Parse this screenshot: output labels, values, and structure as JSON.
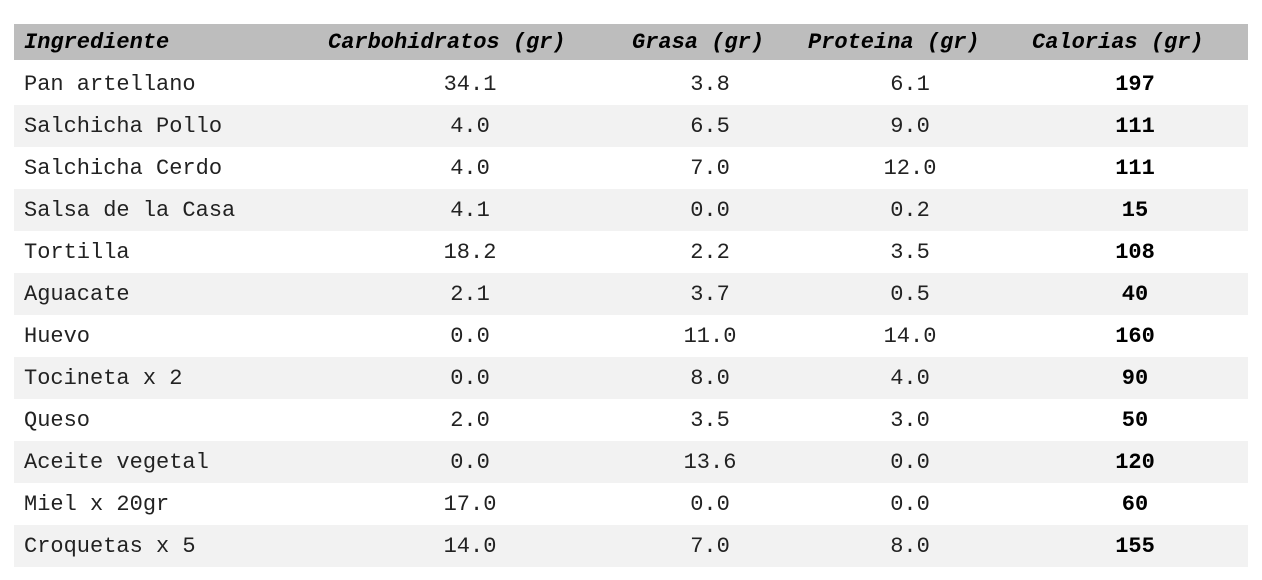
{
  "table": {
    "header": [
      "Ingrediente",
      "Carbohidratos (gr)",
      "Grasa (gr)",
      "Proteina (gr)",
      "Calorias (gr)"
    ],
    "rows": [
      [
        "Pan artellano",
        "34.1",
        "3.8",
        "6.1",
        "197"
      ],
      [
        "Salchicha Pollo",
        "4.0",
        "6.5",
        "9.0",
        "111"
      ],
      [
        "Salchicha Cerdo",
        "4.0",
        "7.0",
        "12.0",
        "111"
      ],
      [
        "Salsa de la Casa",
        "4.1",
        "0.0",
        "0.2",
        "15"
      ],
      [
        "Tortilla",
        "18.2",
        "2.2",
        "3.5",
        "108"
      ],
      [
        "Aguacate",
        "2.1",
        "3.7",
        "0.5",
        "40"
      ],
      [
        "Huevo",
        "0.0",
        "11.0",
        "14.0",
        "160"
      ],
      [
        "Tocineta x 2",
        "0.0",
        "8.0",
        "4.0",
        "90"
      ],
      [
        "Queso",
        "2.0",
        "3.5",
        "3.0",
        "50"
      ],
      [
        "Aceite vegetal",
        "0.0",
        "13.6",
        "0.0",
        "120"
      ],
      [
        "Miel x 20gr",
        "17.0",
        "0.0",
        "0.0",
        "60"
      ],
      [
        "Croquetas x 5",
        "14.0",
        "7.0",
        "8.0",
        "155"
      ]
    ]
  }
}
